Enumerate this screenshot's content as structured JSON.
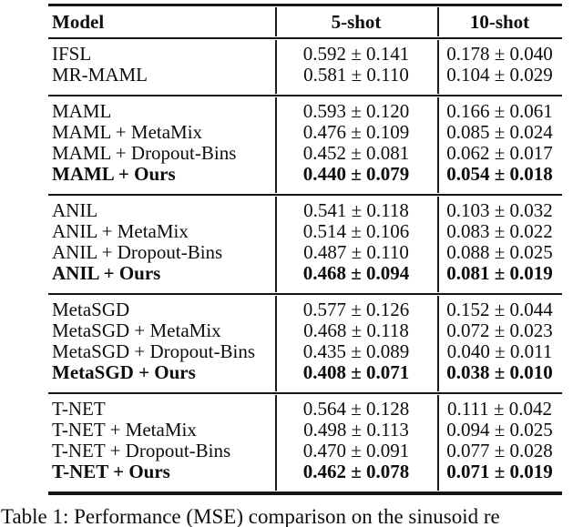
{
  "page": {
    "background": "#ffffff",
    "text_color": "#0d0d0d",
    "rule_color": "#161616"
  },
  "table": {
    "columns": [
      "Model",
      "5-shot",
      "10-shot"
    ],
    "sections": [
      {
        "rows": [
          {
            "model": "IFSL",
            "values": [
              "0.592 ± 0.141",
              "0.178 ± 0.040"
            ],
            "bold": false
          },
          {
            "model": "MR-MAML",
            "values": [
              "0.581 ± 0.110",
              "0.104 ± 0.029"
            ],
            "bold": false
          }
        ]
      },
      {
        "rows": [
          {
            "model": "MAML",
            "values": [
              "0.593 ± 0.120",
              "0.166 ± 0.061"
            ],
            "bold": false
          },
          {
            "model": "MAML + MetaMix",
            "values": [
              "0.476 ± 0.109",
              "0.085 ± 0.024"
            ],
            "bold": false
          },
          {
            "model": "MAML + Dropout-Bins",
            "values": [
              "0.452 ± 0.081",
              "0.062 ± 0.017"
            ],
            "bold": false
          },
          {
            "model": "MAML + Ours",
            "values": [
              "0.440 ± 0.079",
              "0.054 ± 0.018"
            ],
            "bold": true
          }
        ]
      },
      {
        "rows": [
          {
            "model": "ANIL",
            "values": [
              "0.541 ± 0.118",
              "0.103 ± 0.032"
            ],
            "bold": false
          },
          {
            "model": "ANIL + MetaMix",
            "values": [
              "0.514 ± 0.106",
              "0.083 ± 0.022"
            ],
            "bold": false
          },
          {
            "model": "ANIL + Dropout-Bins",
            "values": [
              "0.487 ± 0.110",
              "0.088 ± 0.025"
            ],
            "bold": false
          },
          {
            "model": "ANIL + Ours",
            "values": [
              "0.468 ± 0.094",
              "0.081 ± 0.019"
            ],
            "bold": true
          }
        ]
      },
      {
        "rows": [
          {
            "model": "MetaSGD",
            "values": [
              "0.577 ± 0.126",
              "0.152 ± 0.044"
            ],
            "bold": false
          },
          {
            "model": "MetaSGD + MetaMix",
            "values": [
              "0.468 ± 0.118",
              "0.072 ± 0.023"
            ],
            "bold": false
          },
          {
            "model": "MetaSGD + Dropout-Bins",
            "values": [
              "0.435 ± 0.089",
              "0.040 ± 0.011"
            ],
            "bold": false
          },
          {
            "model": "MetaSGD + Ours",
            "values": [
              "0.408 ± 0.071",
              "0.038 ± 0.010"
            ],
            "bold": true
          }
        ]
      },
      {
        "rows": [
          {
            "model": "T-NET",
            "values": [
              "0.564 ± 0.128",
              "0.111 ± 0.042"
            ],
            "bold": false
          },
          {
            "model": "T-NET + MetaMix",
            "values": [
              "0.498 ± 0.113",
              "0.094 ± 0.025"
            ],
            "bold": false
          },
          {
            "model": "T-NET + Dropout-Bins",
            "values": [
              "0.470 ± 0.091",
              "0.077 ± 0.028"
            ],
            "bold": false
          },
          {
            "model": "T-NET + Ours",
            "values": [
              "0.462 ± 0.078",
              "0.071 ± 0.019"
            ],
            "bold": true
          }
        ]
      }
    ],
    "caption": "Table 1: Performance (MSE) comparison on the sinusoid re"
  }
}
